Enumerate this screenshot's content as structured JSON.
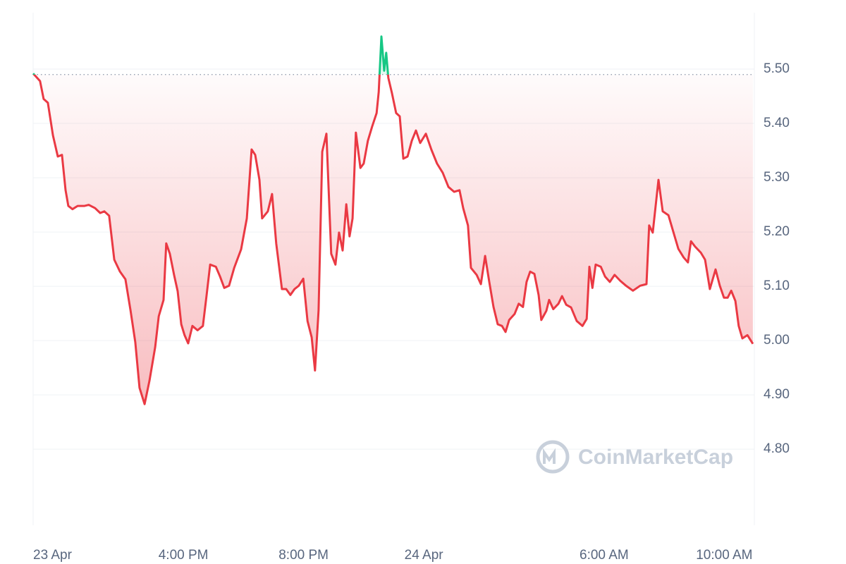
{
  "chart_data": {
    "type": "line",
    "watermark": "CoinMarketCap",
    "reference": 5.49,
    "color_up": "#16c784",
    "color_down": "#ea3943",
    "grid": true,
    "xlim": [
      0,
      24
    ],
    "xticks": [
      {
        "value": 0,
        "label": "23 Apr"
      },
      {
        "value": 5,
        "label": "4:00 PM"
      },
      {
        "value": 9,
        "label": "8:00 PM"
      },
      {
        "value": 13,
        "label": "24 Apr"
      },
      {
        "value": 19,
        "label": "6:00 AM"
      },
      {
        "value": 23,
        "label": "10:00 AM"
      }
    ],
    "ylim": [
      4.66,
      5.6
    ],
    "yticks": [
      {
        "value": 4.8,
        "label": "4.80"
      },
      {
        "value": 4.9,
        "label": "4.90"
      },
      {
        "value": 5.0,
        "label": "5.00"
      },
      {
        "value": 5.1,
        "label": "5.10"
      },
      {
        "value": 5.2,
        "label": "5.20"
      },
      {
        "value": 5.3,
        "label": "5.30"
      },
      {
        "value": 5.4,
        "label": "5.40"
      },
      {
        "value": 5.5,
        "label": "5.50"
      }
    ],
    "x": [
      0,
      0.23,
      0.35,
      0.49,
      0.66,
      0.82,
      0.96,
      1.08,
      1.17,
      1.31,
      1.48,
      1.71,
      1.85,
      2.06,
      2.23,
      2.37,
      2.53,
      2.7,
      2.89,
      3.07,
      3.24,
      3.4,
      3.54,
      3.71,
      3.87,
      4.06,
      4.18,
      4.34,
      4.43,
      4.55,
      4.69,
      4.81,
      4.93,
      5.04,
      5.16,
      5.3,
      5.47,
      5.65,
      5.77,
      5.89,
      6.08,
      6.22,
      6.36,
      6.52,
      6.69,
      6.92,
      7.11,
      7.27,
      7.39,
      7.53,
      7.62,
      7.81,
      7.95,
      8.09,
      8.28,
      8.42,
      8.56,
      8.7,
      8.84,
      8.99,
      9.13,
      9.27,
      9.38,
      9.5,
      9.62,
      9.76,
      9.92,
      10.06,
      10.18,
      10.3,
      10.42,
      10.53,
      10.63,
      10.74,
      10.89,
      11.0,
      11.14,
      11.28,
      11.43,
      11.5,
      11.59,
      11.68,
      11.75,
      11.82,
      11.94,
      12.08,
      12.2,
      12.32,
      12.46,
      12.6,
      12.74,
      12.88,
      13.07,
      13.25,
      13.44,
      13.63,
      13.82,
      14.01,
      14.19,
      14.31,
      14.47,
      14.57,
      14.76,
      14.9,
      15.04,
      15.18,
      15.32,
      15.46,
      15.6,
      15.72,
      15.84,
      16.02,
      16.16,
      16.3,
      16.42,
      16.54,
      16.68,
      16.82,
      16.91,
      17.08,
      17.17,
      17.31,
      17.48,
      17.6,
      17.74,
      17.9,
      18.09,
      18.28,
      18.42,
      18.51,
      18.61,
      18.72,
      18.89,
      19.03,
      19.19,
      19.35,
      19.54,
      19.73,
      19.96,
      20.2,
      20.41,
      20.5,
      20.62,
      20.81,
      20.95,
      21.14,
      21.3,
      21.47,
      21.65,
      21.79,
      21.89,
      22.03,
      22.22,
      22.36,
      22.52,
      22.71,
      22.85,
      22.99,
      23.11,
      23.23,
      23.37,
      23.48,
      23.6,
      23.77,
      23.95
    ],
    "values": [
      5.492,
      5.478,
      5.445,
      5.438,
      5.378,
      5.339,
      5.342,
      5.277,
      5.248,
      5.242,
      5.248,
      5.248,
      5.25,
      5.244,
      5.235,
      5.238,
      5.23,
      5.149,
      5.127,
      5.113,
      5.056,
      4.997,
      4.913,
      4.883,
      4.926,
      4.988,
      5.045,
      5.075,
      5.179,
      5.16,
      5.121,
      5.091,
      5.03,
      5.01,
      4.995,
      5.027,
      5.019,
      5.027,
      5.082,
      5.14,
      5.136,
      5.118,
      5.097,
      5.101,
      5.134,
      5.168,
      5.225,
      5.352,
      5.342,
      5.296,
      5.225,
      5.238,
      5.27,
      5.179,
      5.095,
      5.095,
      5.084,
      5.095,
      5.101,
      5.114,
      5.036,
      5.006,
      4.945,
      5.056,
      5.348,
      5.381,
      5.16,
      5.14,
      5.199,
      5.166,
      5.251,
      5.192,
      5.225,
      5.383,
      5.318,
      5.326,
      5.368,
      5.394,
      5.419,
      5.458,
      5.56,
      5.497,
      5.53,
      5.484,
      5.456,
      5.419,
      5.413,
      5.335,
      5.339,
      5.368,
      5.387,
      5.364,
      5.381,
      5.352,
      5.326,
      5.309,
      5.283,
      5.274,
      5.277,
      5.244,
      5.212,
      5.134,
      5.121,
      5.104,
      5.156,
      5.108,
      5.062,
      5.03,
      5.027,
      5.016,
      5.038,
      5.049,
      5.068,
      5.062,
      5.108,
      5.127,
      5.123,
      5.084,
      5.038,
      5.055,
      5.075,
      5.058,
      5.068,
      5.082,
      5.066,
      5.061,
      5.036,
      5.027,
      5.04,
      5.136,
      5.097,
      5.14,
      5.136,
      5.118,
      5.108,
      5.121,
      5.11,
      5.101,
      5.092,
      5.101,
      5.104,
      5.212,
      5.199,
      5.296,
      5.238,
      5.231,
      5.201,
      5.169,
      5.153,
      5.144,
      5.183,
      5.173,
      5.162,
      5.149,
      5.095,
      5.131,
      5.101,
      5.079,
      5.079,
      5.092,
      5.073,
      5.027,
      5.004,
      5.01,
      4.994
    ]
  }
}
